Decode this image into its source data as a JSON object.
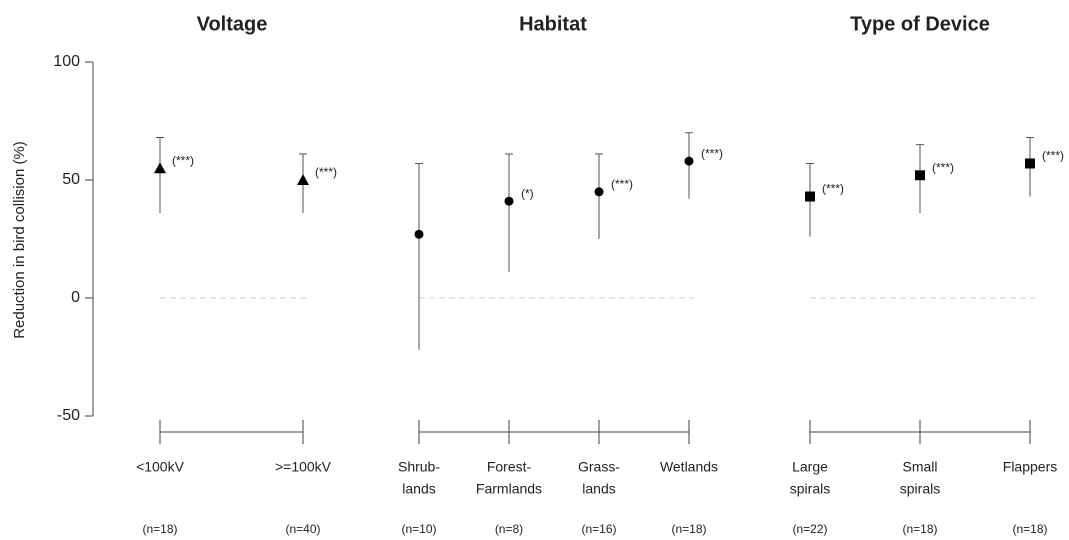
{
  "chart_data": [
    {
      "type": "errorbar",
      "title": "Voltage",
      "y_label": "Reduction in bird collision (%)",
      "ylim": [
        -50,
        100
      ],
      "yticks": [
        -50,
        0,
        50,
        100
      ],
      "hline": 0,
      "marker": "triangle",
      "color": "#000000",
      "categories": [
        [
          "<100kV"
        ],
        [
          ">=100kV"
        ]
      ],
      "n_labels": [
        "(n=18)",
        "(n=40)"
      ],
      "values": [
        55,
        50
      ],
      "lower": [
        36,
        36
      ],
      "upper": [
        68,
        61
      ],
      "significance": [
        "(***)",
        "(***)"
      ]
    },
    {
      "type": "errorbar",
      "title": "Habitat",
      "ylim": [
        -50,
        100
      ],
      "hline": 0,
      "marker": "circle",
      "color": "#000000",
      "categories": [
        [
          "Shrub-",
          "lands"
        ],
        [
          "Forest-",
          "Farmlands"
        ],
        [
          "Grass-",
          "lands"
        ],
        [
          "Wetlands"
        ]
      ],
      "n_labels": [
        "(n=10)",
        "(n=8)",
        "(n=16)",
        "(n=18)"
      ],
      "values": [
        27,
        41,
        45,
        58
      ],
      "lower": [
        -22,
        11,
        25,
        42
      ],
      "upper": [
        57,
        61,
        61,
        70
      ],
      "significance": [
        "",
        "(*)",
        "(***)",
        "(***)"
      ]
    },
    {
      "type": "errorbar",
      "title": "Type of Device",
      "ylim": [
        -50,
        100
      ],
      "hline": 0,
      "marker": "square",
      "color": "#000000",
      "categories": [
        [
          "Large",
          "spirals"
        ],
        [
          "Small",
          "spirals"
        ],
        [
          "Flappers"
        ]
      ],
      "n_labels": [
        "(n=22)",
        "(n=18)",
        "(n=18)"
      ],
      "values": [
        43,
        52,
        57
      ],
      "lower": [
        26,
        36,
        43
      ],
      "upper": [
        57,
        65,
        68
      ],
      "significance": [
        "(***)",
        "(***)",
        "(***)"
      ]
    }
  ]
}
